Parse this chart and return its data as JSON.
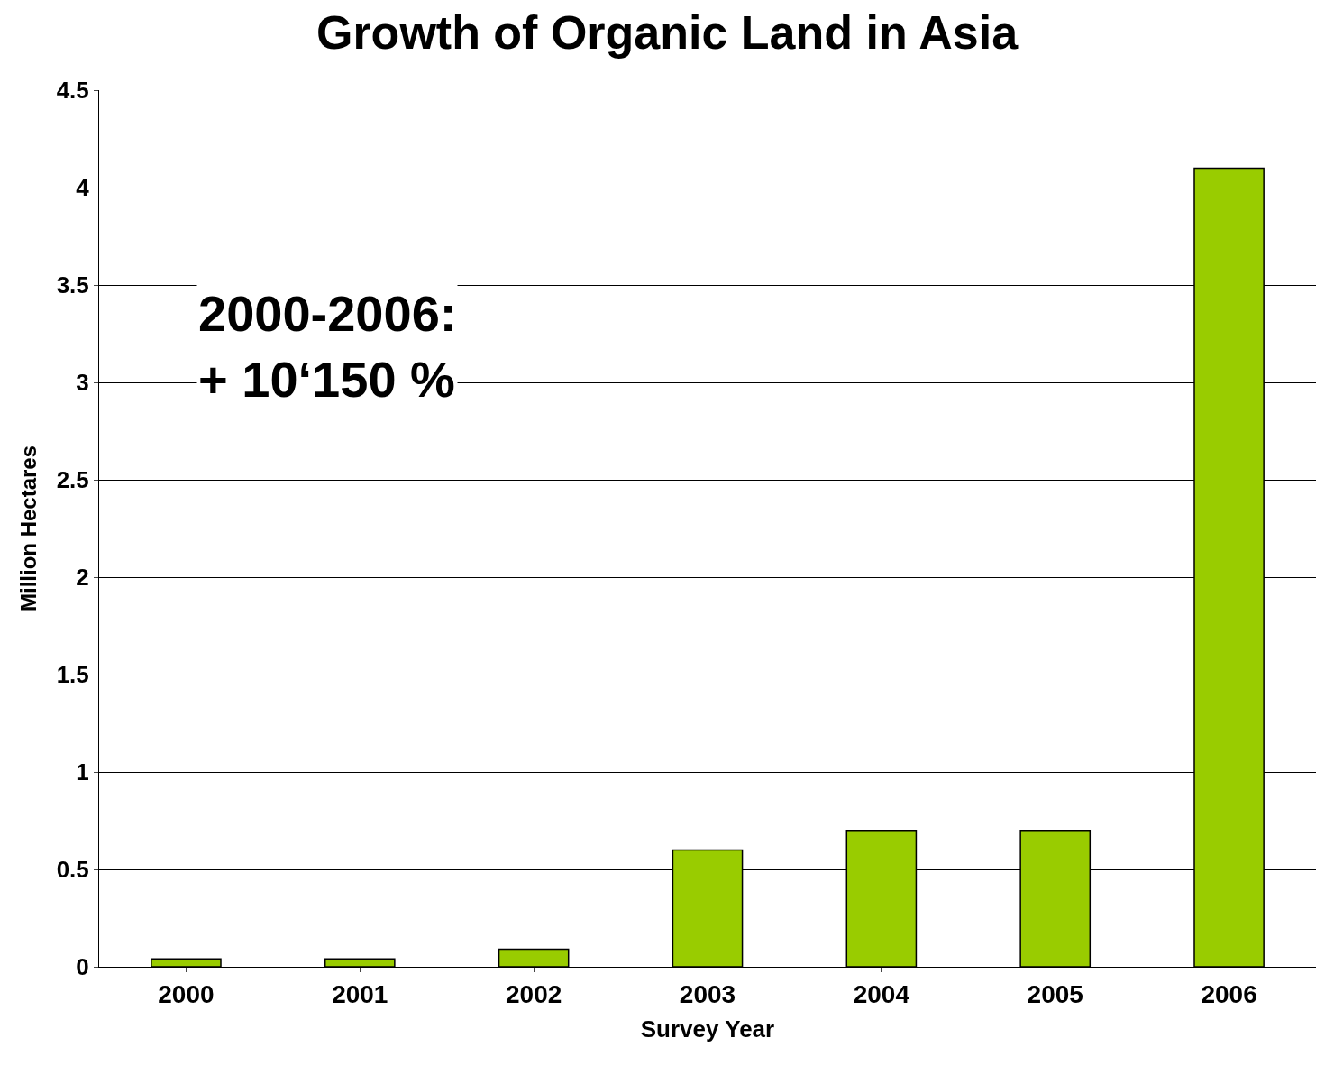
{
  "chart_data": {
    "type": "bar",
    "title": "Growth of Organic Land in Asia",
    "xlabel": "Survey Year",
    "ylabel": "Million Hectares",
    "categories": [
      "2000",
      "2001",
      "2002",
      "2003",
      "2004",
      "2005",
      "2006"
    ],
    "values": [
      0.04,
      0.04,
      0.09,
      0.6,
      0.7,
      0.7,
      4.1
    ],
    "color": "#99cc00",
    "ylim": [
      0,
      4.5
    ],
    "yticks": [
      0,
      0.5,
      1,
      1.5,
      2,
      2.5,
      3,
      3.5,
      4,
      4.5
    ],
    "grid": "y",
    "legend": false,
    "annotations": [
      "2000-2006:\n+ 10‘150 %"
    ]
  }
}
